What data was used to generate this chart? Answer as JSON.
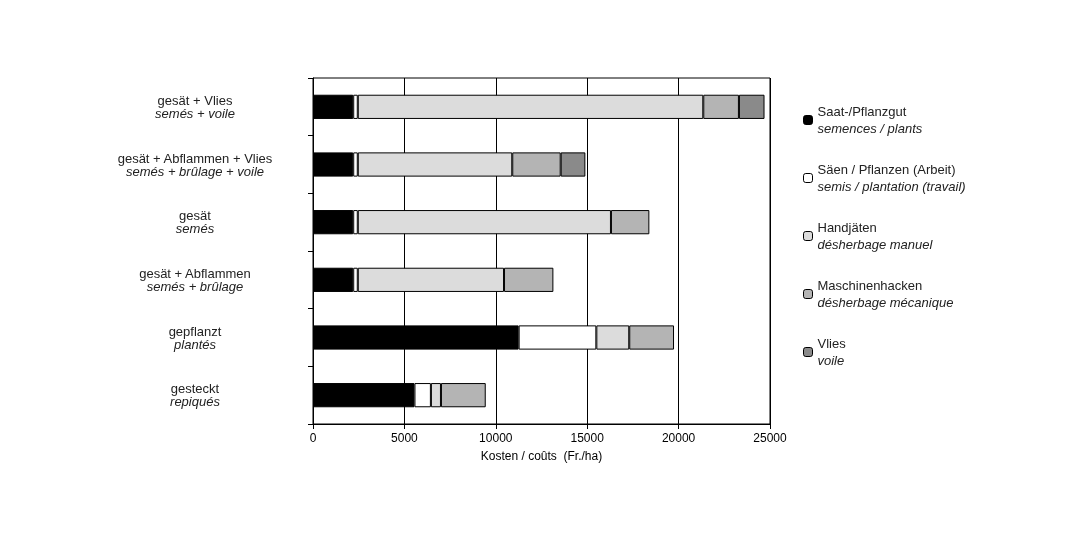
{
  "chart_data": {
    "type": "bar",
    "orientation": "horizontal",
    "stacked": true,
    "xlabel": "Kosten / coûts  (Fr./ha)",
    "categories": [
      "gesät + Vlies\nsemés + voile",
      "gesät + Abflammen + Vlies\nsemés + brûlage + voile",
      "gesät\nsemés",
      "gesät + Abflammen\nsemés + brûlage",
      "gepflanzt\nplantés",
      "gesteckt\nrepiqués"
    ],
    "series": [
      {
        "name": "Saat-/Pflanzgut\nsemences / plants",
        "color": "#000000",
        "values": [
          2200,
          2200,
          2200,
          2200,
          11250,
          5550
        ]
      },
      {
        "name": "Säen / Pflanzen (Arbeit)\nsemis / plantation (travail)",
        "color": "#ffffff",
        "values": [
          250,
          250,
          250,
          250,
          4250,
          900
        ]
      },
      {
        "name": "Handjäten\ndésherbage manuel",
        "color": "#dcdcdc",
        "values": [
          18900,
          8450,
          13850,
          8000,
          1800,
          550
        ]
      },
      {
        "name": "Maschinenhacken\ndésherbage mécanique",
        "color": "#b4b4b4",
        "values": [
          1950,
          2650,
          2100,
          2700,
          2450,
          2450
        ]
      },
      {
        "name": "Vlies\nvoile",
        "color": "#8a8a8a",
        "values": [
          1400,
          1350,
          null,
          null,
          null,
          null
        ]
      }
    ],
    "xlim": [
      0,
      25000
    ],
    "xticks": [
      0,
      5000,
      10000,
      15000,
      20000,
      25000
    ],
    "grid": "x",
    "legend": "right"
  }
}
